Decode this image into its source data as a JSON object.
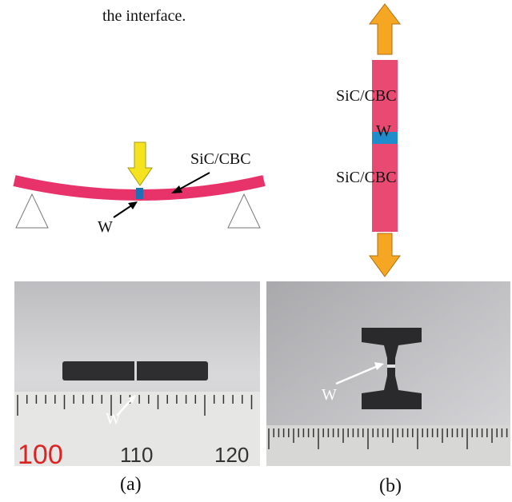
{
  "caption_fragment": "the interface.",
  "panel_a": {
    "diagram": {
      "material_label": "SiC/CBC",
      "joint_label": "W"
    },
    "photo": {
      "joint_label": "W",
      "ruler_labels": [
        "100",
        "110",
        "120"
      ]
    },
    "label": "(a)"
  },
  "panel_b": {
    "diagram": {
      "upper_label": "SiC/CBC",
      "joint_label": "W",
      "lower_label": "SiC/CBC"
    },
    "photo": {
      "joint_label": "W"
    },
    "label": "(b)"
  }
}
